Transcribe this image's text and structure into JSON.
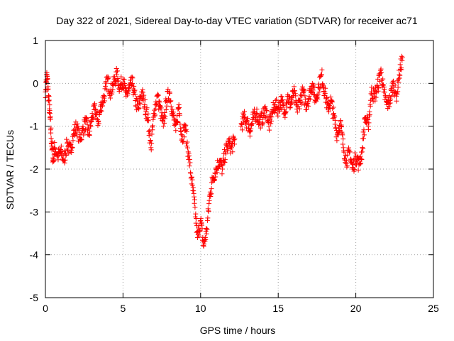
{
  "chart_data": {
    "type": "scatter",
    "title": "Day 322 of 2021, Sidereal Day-to-day VTEC variation (SDTVAR) for receiver ac71",
    "xlabel": "GPS time / hours",
    "ylabel": "SDTVAR / TECUs",
    "xlim": [
      0,
      25
    ],
    "ylim": [
      -5,
      1
    ],
    "x_ticks": [
      0,
      5,
      10,
      15,
      20,
      25
    ],
    "y_ticks": [
      -5,
      -4,
      -3,
      -2,
      -1,
      0,
      1
    ],
    "x_tick_labels": [
      "0",
      "5",
      "10",
      "15",
      "20",
      "25"
    ],
    "y_tick_labels": [
      "-5",
      "-4",
      "-3",
      "-2",
      "-1",
      "0",
      "1"
    ],
    "grid": true,
    "marker": "+",
    "series": [
      {
        "name": "SDTVAR",
        "color": "#ff0000",
        "x": [
          0.0,
          0.1,
          0.2,
          0.3,
          0.4,
          0.5,
          0.6,
          0.8,
          1.0,
          1.2,
          1.4,
          1.6,
          1.8,
          2.0,
          2.2,
          2.4,
          2.6,
          2.8,
          3.0,
          3.2,
          3.4,
          3.6,
          3.8,
          4.0,
          4.2,
          4.4,
          4.6,
          4.8,
          5.0,
          5.2,
          5.4,
          5.6,
          5.8,
          6.0,
          6.2,
          6.4,
          6.6,
          6.8,
          7.0,
          7.2,
          7.4,
          7.6,
          7.8,
          8.0,
          8.2,
          8.4,
          8.6,
          8.8,
          9.0,
          9.2,
          9.4,
          9.6,
          9.8,
          10.0,
          10.2,
          10.4,
          10.6,
          10.8,
          11.0,
          11.2,
          11.4,
          11.6,
          11.8,
          12.0,
          12.2,
          12.6,
          12.8,
          13.0,
          13.2,
          13.4,
          13.6,
          13.8,
          14.0,
          14.2,
          14.4,
          14.6,
          14.8,
          15.0,
          15.2,
          15.4,
          15.6,
          15.8,
          16.0,
          16.2,
          16.4,
          16.6,
          16.8,
          17.0,
          17.2,
          17.4,
          17.6,
          17.8,
          18.0,
          18.2,
          18.4,
          18.6,
          18.8,
          19.0,
          19.2,
          19.4,
          19.6,
          19.8,
          20.0,
          20.2,
          20.4,
          20.6,
          20.8,
          21.0,
          21.2,
          21.4,
          21.6,
          21.8,
          22.0,
          22.2,
          22.4,
          22.6,
          22.8,
          23.0
        ],
        "y": [
          -0.2,
          0.2,
          -0.3,
          -0.8,
          -1.4,
          -1.8,
          -1.5,
          -1.7,
          -1.6,
          -1.8,
          -1.4,
          -1.6,
          -1.2,
          -1.0,
          -1.3,
          -1.1,
          -0.9,
          -1.2,
          -0.8,
          -0.6,
          -0.9,
          -0.5,
          -0.3,
          0.1,
          -0.2,
          0.0,
          0.2,
          -0.1,
          0.1,
          -0.3,
          -0.1,
          0.0,
          -0.4,
          -0.6,
          -0.2,
          -0.5,
          -0.8,
          -1.5,
          -0.7,
          -0.3,
          -0.6,
          -1.0,
          -0.4,
          -0.2,
          -0.7,
          -1.1,
          -0.5,
          -1.3,
          -1.0,
          -1.6,
          -2.2,
          -2.8,
          -3.6,
          -3.2,
          -3.8,
          -3.4,
          -2.6,
          -2.2,
          -2.0,
          -1.8,
          -2.0,
          -1.6,
          -1.4,
          -1.5,
          -1.3,
          -1.0,
          -0.8,
          -0.9,
          -1.1,
          -0.8,
          -0.7,
          -0.9,
          -0.8,
          -0.6,
          -1.0,
          -0.7,
          -0.5,
          -0.6,
          -0.4,
          -0.7,
          -0.3,
          -0.5,
          -0.2,
          -0.6,
          -0.4,
          -0.2,
          -0.5,
          -0.3,
          0.0,
          -0.4,
          -0.1,
          0.2,
          -0.2,
          -0.6,
          -0.4,
          -0.8,
          -1.2,
          -0.9,
          -1.5,
          -1.8,
          -1.6,
          -2.0,
          -1.7,
          -1.9,
          -1.6,
          -0.8,
          -1.0,
          -0.2,
          -0.3,
          -0.1,
          0.3,
          -0.2,
          -0.5,
          -0.4,
          0.0,
          -0.3,
          0.2,
          0.6
        ]
      }
    ]
  }
}
